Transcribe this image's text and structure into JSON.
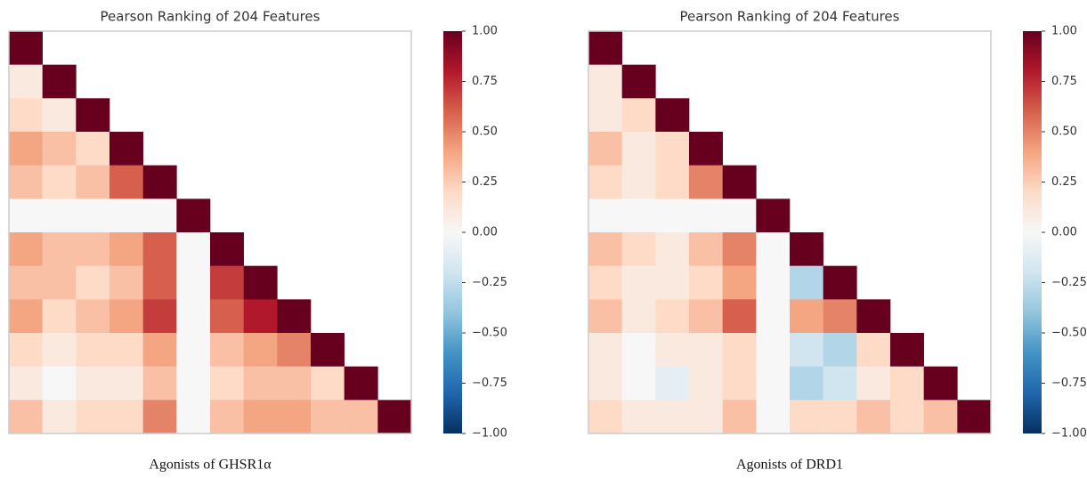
{
  "chart_data": [
    {
      "type": "heatmap",
      "title": "Pearson Ranking of 204 Features",
      "caption": "Agonists of GHSR1α",
      "colormap": [
        "#053061",
        "#2166ac",
        "#4393c3",
        "#92c5de",
        "#d1e5f0",
        "#f7f7f7",
        "#fddbc7",
        "#f4a582",
        "#d6604d",
        "#b2182b",
        "#67001f"
      ],
      "clim": [
        -1,
        1
      ],
      "cticks": [
        {
          "value": 1,
          "label": "1.00"
        },
        {
          "value": 0.75,
          "label": "0.75"
        },
        {
          "value": 0.5,
          "label": "0.50"
        },
        {
          "value": 0.25,
          "label": "0.25"
        },
        {
          "value": 0,
          "label": "0.00"
        },
        {
          "value": -0.25,
          "label": "−0.25"
        },
        {
          "value": -0.5,
          "label": "−0.50"
        },
        {
          "value": -0.75,
          "label": "−0.75"
        },
        {
          "value": -1,
          "label": "−1.00"
        }
      ],
      "matrix": [
        [
          1
        ],
        [
          0.1,
          1
        ],
        [
          0.2,
          0.1,
          1
        ],
        [
          0.4,
          0.3,
          0.2,
          1
        ],
        [
          0.3,
          0.2,
          0.3,
          0.6,
          1
        ],
        [
          0,
          0,
          0,
          0,
          0,
          1
        ],
        [
          0.4,
          0.3,
          0.3,
          0.4,
          0.6,
          0,
          1
        ],
        [
          0.3,
          0.3,
          0.2,
          0.3,
          0.6,
          0,
          0.7,
          1
        ],
        [
          0.4,
          0.2,
          0.3,
          0.4,
          0.7,
          0,
          0.6,
          0.8,
          1
        ],
        [
          0.2,
          0.1,
          0.2,
          0.2,
          0.4,
          0,
          0.3,
          0.4,
          0.5,
          1
        ],
        [
          0.1,
          0,
          0.1,
          0.1,
          0.3,
          0,
          0.2,
          0.3,
          0.3,
          0.2,
          1
        ],
        [
          0.3,
          0.1,
          0.2,
          0.2,
          0.5,
          0,
          0.3,
          0.4,
          0.4,
          0.3,
          0.3,
          1
        ]
      ]
    },
    {
      "type": "heatmap",
      "title": "Pearson Ranking of 204 Features",
      "caption": "Agonists of DRD1",
      "colormap": [
        "#053061",
        "#2166ac",
        "#4393c3",
        "#92c5de",
        "#d1e5f0",
        "#f7f7f7",
        "#fddbc7",
        "#f4a582",
        "#d6604d",
        "#b2182b",
        "#67001f"
      ],
      "clim": [
        -1,
        1
      ],
      "cticks": [
        {
          "value": 1,
          "label": "1.00"
        },
        {
          "value": 0.75,
          "label": "0.75"
        },
        {
          "value": 0.5,
          "label": "0.50"
        },
        {
          "value": 0.25,
          "label": "0.25"
        },
        {
          "value": 0,
          "label": "0.00"
        },
        {
          "value": -0.25,
          "label": "−0.25"
        },
        {
          "value": -0.5,
          "label": "−0.50"
        },
        {
          "value": -0.75,
          "label": "−0.75"
        },
        {
          "value": -1,
          "label": "−1.00"
        }
      ],
      "matrix": [
        [
          1
        ],
        [
          0.1,
          1
        ],
        [
          0.1,
          0.2,
          1
        ],
        [
          0.3,
          0.1,
          0.2,
          1
        ],
        [
          0.2,
          0.1,
          0.2,
          0.5,
          1
        ],
        [
          0,
          0,
          0,
          0,
          0,
          1
        ],
        [
          0.3,
          0.2,
          0.1,
          0.3,
          0.5,
          0,
          1
        ],
        [
          0.2,
          0.1,
          0.1,
          0.2,
          0.4,
          0,
          -0.3,
          1
        ],
        [
          0.3,
          0.1,
          0.2,
          0.3,
          0.6,
          0,
          0.4,
          0.5,
          1
        ],
        [
          0.1,
          0,
          0.1,
          0.1,
          0.2,
          0,
          -0.2,
          -0.3,
          0.2,
          1
        ],
        [
          0.1,
          0,
          -0.1,
          0.1,
          0.2,
          0,
          -0.3,
          -0.2,
          0.1,
          0.2,
          1
        ],
        [
          0.2,
          0.1,
          0.1,
          0.1,
          0.3,
          0,
          0.2,
          0.2,
          0.3,
          0.2,
          0.3,
          1
        ]
      ]
    }
  ]
}
